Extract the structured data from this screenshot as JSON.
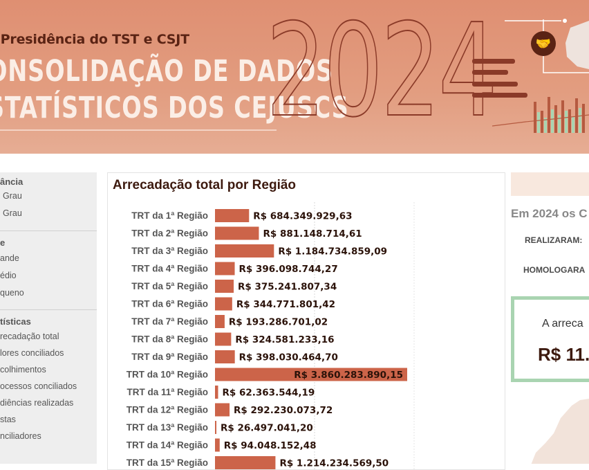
{
  "banner": {
    "subtitle": "-Presidência do TST e CSJT",
    "title_line1": "ONSOLIDAÇÃO DE DADOS",
    "title_line2": "STATÍSTICOS DOS CEJUSCS",
    "year": "2024",
    "icon": "handshake-icon"
  },
  "filters": {
    "instancia": {
      "heading": "ância",
      "options": [
        "Grau",
        "Grau"
      ]
    },
    "porte": {
      "heading": "e",
      "options": [
        "ande",
        "édio",
        "queno"
      ]
    },
    "estatisticas": {
      "heading": "tísticas",
      "options": [
        "recadação total",
        "lores conciliados",
        "colhimentos",
        "ocessos conciliados",
        "diências realizadas",
        "stas",
        "nciliadores"
      ]
    }
  },
  "chart_data": {
    "type": "bar",
    "orientation": "horizontal",
    "title": "Arrecadação total por Região",
    "categories": [
      "TRT da 1ª Região",
      "TRT da 2ª Região",
      "TRT da 3ª Região",
      "TRT da 4ª Região",
      "TRT da 5ª Região",
      "TRT da 6ª Região",
      "TRT da 7ª Região",
      "TRT da 8ª Região",
      "TRT da 9ª Região",
      "TRT da 10ª Região",
      "TRT da 11ª Região",
      "TRT da 12ª Região",
      "TRT da 13ª Região",
      "TRT da 14ª Região",
      "TRT da 15ª Região"
    ],
    "values": [
      684349929.63,
      881148714.61,
      1184734859.09,
      396098744.27,
      375241807.34,
      344771801.42,
      193286701.02,
      324581233.16,
      398030464.7,
      3860283890.15,
      62363544.19,
      292230073.72,
      26497041.2,
      94048152.48,
      1214234569.5
    ],
    "labels": [
      "R$ 684.349.929,63",
      "R$ 881.148.714,61",
      "R$ 1.184.734.859,09",
      "R$ 396.098.744,27",
      "R$ 375.241.807,34",
      "R$ 344.771.801,42",
      "R$ 193.286.701,02",
      "R$ 324.581.233,16",
      "R$ 398.030.464,70",
      "R$ 3.860.283.890,15",
      "R$ 62.363.544,19",
      "R$ 292.230.073,72",
      "R$ 26.497.041,20",
      "R$ 94.048.152,48",
      "R$ 1.214.234.569,50"
    ],
    "bar_color": "#cc6449",
    "grid": true
  },
  "right_panel": {
    "intro": "Em 2024 os C",
    "realizaram": "REALIZARAM:",
    "homologaram": "HOMOLOGARA",
    "box_label": "A arreca",
    "box_value": "R$ 11."
  }
}
